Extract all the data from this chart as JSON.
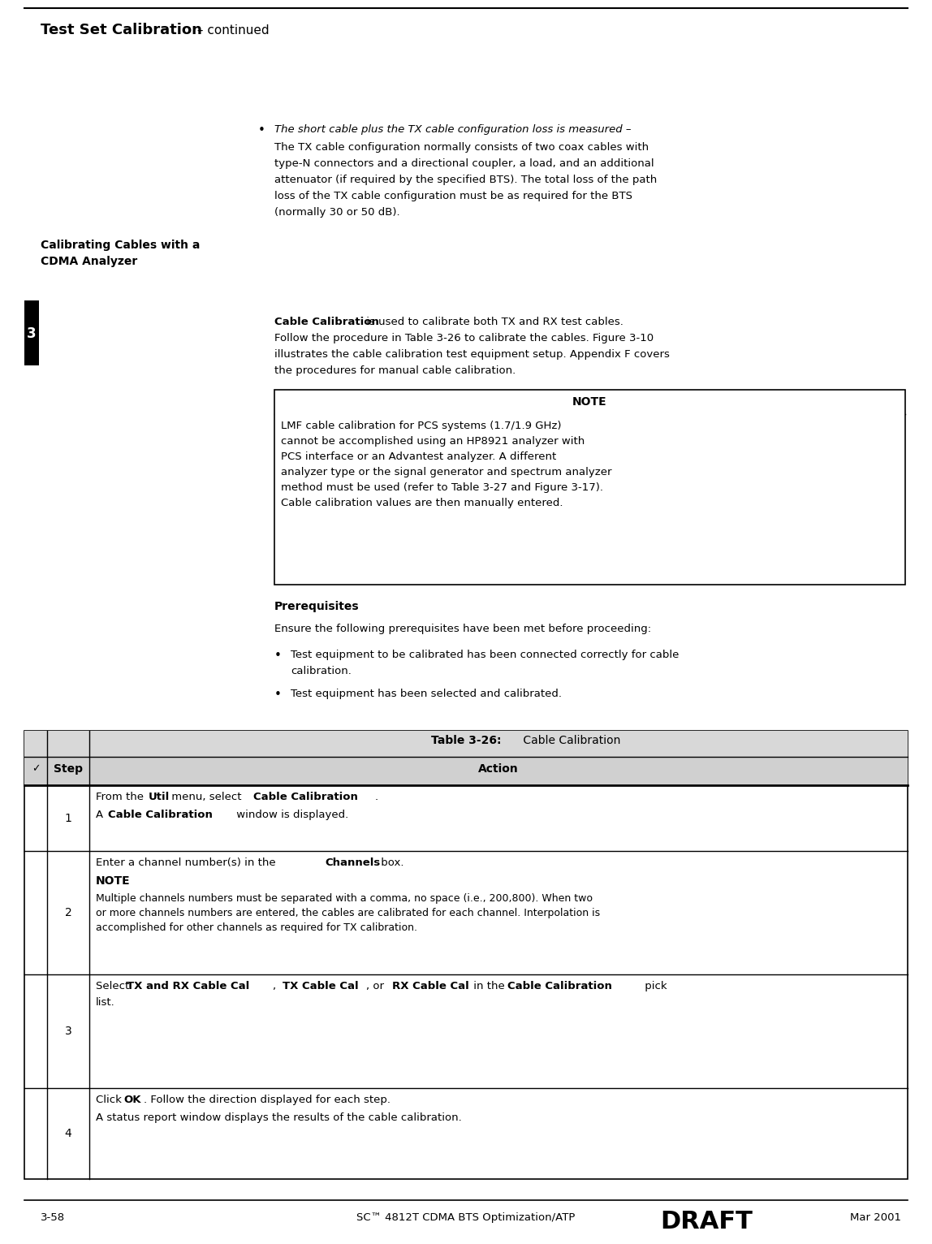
{
  "page_width": 11.48,
  "page_height": 15.32,
  "bg_color": "#ffffff",
  "header_title_bold": "Test Set Calibration",
  "header_title_normal": " – continued",
  "footer_left": "3-58",
  "footer_center": "SC™ 4812T CDMA BTS Optimization/ATP",
  "footer_draft": "DRAFT",
  "footer_right": "Mar 2001",
  "chapter_num": "3",
  "bullet_italic": "The short cable plus the TX cable configuration loss is measured –",
  "bullet_body_line1": "The TX cable configuration normally consists of two coax cables with",
  "bullet_body_line2": "type-N connectors and a directional coupler, a load, and an additional",
  "bullet_body_line3": "attenuator (if required by the specified BTS). The total loss of the path",
  "bullet_body_line4": "loss of the TX cable configuration must be as required for the BTS",
  "bullet_body_line5": "(normally 30 or 50 dB).",
  "sidebar_line1": "Calibrating Cables with a",
  "sidebar_line2": "CDMA Analyzer",
  "section_bold": "Cable Calibration",
  "section_rest_line1": " is used to calibrate both TX and RX test cables.",
  "section_rest_line2": "Follow the procedure in Table 3-26 to calibrate the cables. Figure 3-10",
  "section_rest_line3": "illustrates the cable calibration test equipment setup. Appendix F covers",
  "section_rest_line4": "the procedures for manual cable calibration.",
  "note_title": "NOTE",
  "note_line1": "LMF cable calibration for PCS systems (1.7/1.9 GHz)",
  "note_line2": "cannot be accomplished using an HP8921 analyzer with",
  "note_line3": "PCS interface or an Advantest analyzer. A different",
  "note_line4": "analyzer type or the signal generator and spectrum analyzer",
  "note_line5": "method must be used (refer to Table 3-27 and Figure 3-17).",
  "note_line6": "Cable calibration values are then manually entered.",
  "prereq_title": "Prerequisites",
  "prereq_intro": "Ensure the following prerequisites have been met before proceeding:",
  "prereq_b1_line1": "Test equipment to be calibrated has been connected correctly for cable",
  "prereq_b1_line2": "calibration.",
  "prereq_b2": "Test equipment has been selected and calibrated.",
  "table_title_bold": "Table 3-26:",
  "table_title_normal": " Cable Calibration",
  "table_col1": "Step",
  "table_col2": "Action",
  "check_mark": "✓"
}
